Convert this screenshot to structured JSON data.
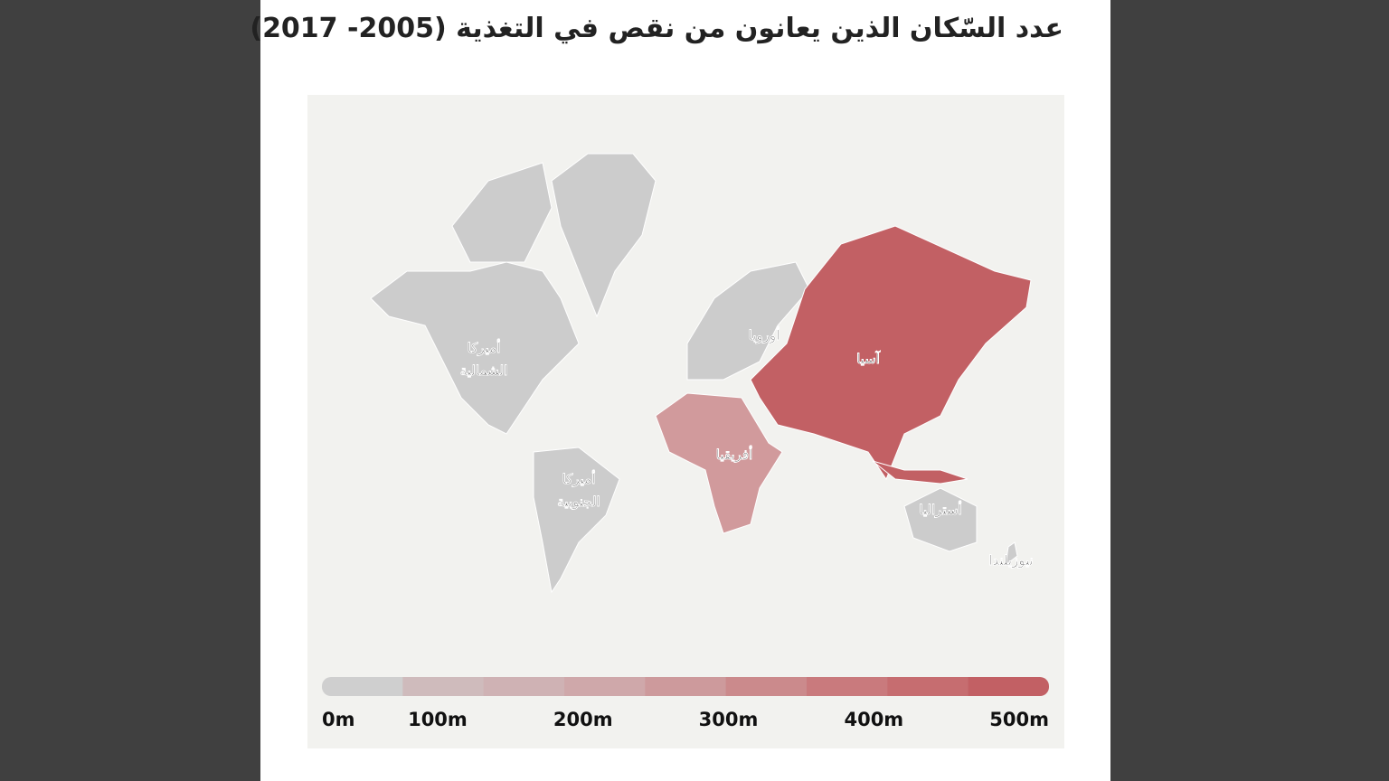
{
  "title": "عدد السّكان الذين يعانون من نقص في التغذية (2005- 2017)",
  "regions": [
    {
      "label": "أميركا الشمالية",
      "color": "#cccccc"
    },
    {
      "label": "أميركا الجنوبية",
      "color": "#cccccc"
    },
    {
      "label": "أوروبا",
      "color": "#cccccc"
    },
    {
      "label": "أفريقيا",
      "color": "#d19a9c"
    },
    {
      "label": "آسيا",
      "color": "#c26064"
    },
    {
      "label": "أستراليا",
      "color": "#cccccc"
    },
    {
      "label": "نيوزيلندا",
      "color": "#cccccc"
    }
  ],
  "legend": {
    "colors": [
      "#cfcfcf",
      "#cfbbbc",
      "#cfb2b4",
      "#cfa8aa",
      "#cd9a9c",
      "#cb8a8c",
      "#c97a7d",
      "#c66d70",
      "#c26064"
    ],
    "labels": [
      "0m",
      "100m",
      "200m",
      "300m",
      "400m",
      "500m"
    ]
  }
}
